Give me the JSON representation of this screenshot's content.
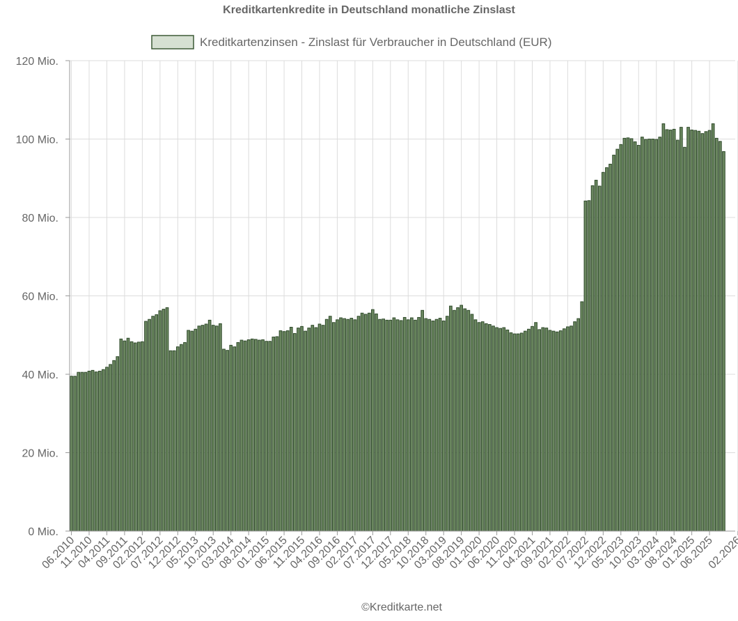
{
  "chart_data": {
    "type": "bar",
    "title": "Kreditkartenkredite in Deutschland monatliche Zinslast",
    "legend": {
      "label": "Kreditkartenzinsen - Zinslast für Verbraucher in Deutschland (EUR)",
      "position": "top"
    },
    "credit": "©Kreditkarte.net",
    "y_ticks": [
      "0 Mio.",
      "20 Mio.",
      "40 Mio.",
      "60 Mio.",
      "80 Mio.",
      "100 Mio.",
      "120 Mio."
    ],
    "ylim": [
      0,
      120
    ],
    "y_unit": "Mio. EUR",
    "grid": true,
    "colors": {
      "fill": "#6b8760",
      "stroke": "#2f4a2a",
      "legend_fill": "#d6e0d2"
    },
    "x_start": "06.2010",
    "x_tick_labels": [
      "06.2010",
      "11.2010",
      "04.2011",
      "09.2011",
      "02.2012",
      "07.2012",
      "12.2012",
      "05.2013",
      "10.2013",
      "03.2014",
      "08.2014",
      "01.2015",
      "06.2015",
      "11.2015",
      "04.2016",
      "09.2016",
      "02.2017",
      "07.2017",
      "12.2017",
      "05.2018",
      "10.2018",
      "03.2019",
      "08.2019",
      "01.2020",
      "06.2020",
      "11.2020",
      "04.2021",
      "09.2021",
      "02.2022",
      "07.2022",
      "12.2022",
      "05.2023",
      "10.2023",
      "03.2024",
      "08.2024",
      "01.2025",
      "06.2025",
      "02.2026"
    ],
    "values": [
      39.5,
      39.5,
      40.5,
      40.5,
      40.5,
      40.8,
      41.0,
      40.6,
      40.8,
      41.2,
      41.8,
      42.5,
      43.5,
      44.5,
      49.0,
      48.5,
      49.2,
      48.3,
      48.0,
      48.2,
      48.3,
      53.5,
      54.0,
      54.8,
      55.2,
      56.2,
      56.6,
      57.0,
      46.0,
      46.0,
      47.0,
      47.6,
      48.1,
      51.2,
      51.0,
      51.5,
      52.3,
      52.5,
      52.8,
      53.8,
      52.5,
      52.3,
      52.9,
      46.4,
      46.1,
      47.4,
      47.0,
      48.1,
      48.7,
      48.5,
      48.8,
      49.0,
      48.9,
      48.7,
      48.8,
      48.4,
      48.4,
      49.5,
      49.6,
      51.1,
      50.9,
      51.1,
      52.0,
      50.4,
      51.8,
      52.2,
      51.0,
      51.8,
      52.5,
      51.9,
      52.8,
      52.5,
      54.0,
      54.8,
      53.2,
      53.9,
      54.4,
      54.2,
      54.0,
      54.3,
      53.9,
      54.8,
      55.6,
      55.3,
      55.6,
      56.5,
      55.4,
      54.0,
      54.1,
      53.8,
      53.8,
      54.4,
      53.9,
      53.7,
      54.5,
      53.9,
      54.4,
      53.8,
      54.5,
      56.3,
      54.2,
      54.0,
      53.6,
      54.0,
      54.3,
      53.6,
      54.8,
      57.4,
      56.3,
      57.0,
      57.6,
      56.7,
      56.3,
      55.3,
      53.9,
      53.2,
      53.4,
      52.9,
      52.7,
      52.3,
      51.9,
      51.7,
      51.9,
      51.3,
      50.6,
      50.3,
      50.3,
      50.5,
      51.0,
      51.5,
      52.2,
      53.2,
      51.4,
      51.9,
      51.8,
      51.2,
      51.0,
      50.8,
      51.1,
      51.6,
      52.1,
      52.3,
      53.4,
      54.2,
      58.5,
      84.2,
      84.3,
      88.1,
      89.5,
      88.0,
      91.5,
      92.7,
      93.6,
      95.9,
      97.4,
      98.6,
      100.2,
      100.3,
      100.1,
      99.3,
      98.4,
      100.5,
      99.9,
      100.0,
      100.0,
      99.9,
      100.5,
      103.9,
      102.4,
      102.3,
      102.5,
      99.7,
      103.0,
      97.9,
      103.0,
      102.3,
      102.2,
      102.0,
      101.4,
      101.9,
      102.2,
      103.9,
      100.2,
      99.4,
      96.8
    ]
  }
}
